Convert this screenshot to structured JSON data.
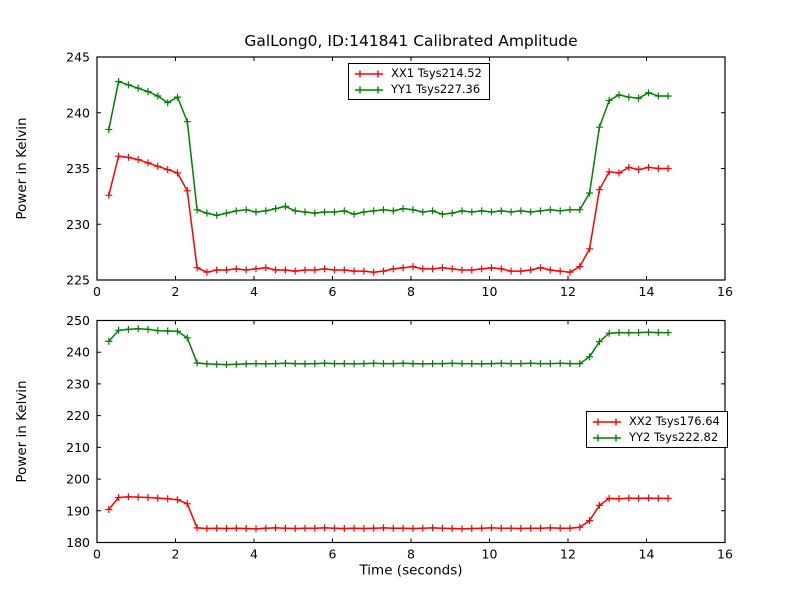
{
  "title": "GalLong0, ID:141841 Calibrated Amplitude",
  "colors": {
    "xx_series": "#ff0000",
    "yy_series": "#008000",
    "axis": "#000000",
    "background": "#ffffff"
  },
  "chart_data": [
    {
      "type": "line",
      "title": "",
      "xlabel": "",
      "ylabel": "Power in Kelvin",
      "xlim": [
        0,
        16
      ],
      "ylim": [
        225,
        245
      ],
      "xticks": [
        0,
        2,
        4,
        6,
        8,
        10,
        12,
        14,
        16
      ],
      "yticks": [
        225,
        230,
        235,
        240,
        245
      ],
      "grid": false,
      "legend_position": "top-center",
      "marker": "plus",
      "x": [
        0.3,
        0.55,
        0.8,
        1.05,
        1.3,
        1.55,
        1.8,
        2.05,
        2.3,
        2.55,
        2.8,
        3.05,
        3.3,
        3.55,
        3.8,
        4.05,
        4.3,
        4.55,
        4.8,
        5.05,
        5.3,
        5.55,
        5.8,
        6.05,
        6.3,
        6.55,
        6.8,
        7.05,
        7.3,
        7.55,
        7.8,
        8.05,
        8.3,
        8.55,
        8.8,
        9.05,
        9.3,
        9.55,
        9.8,
        10.05,
        10.3,
        10.55,
        10.8,
        11.05,
        11.3,
        11.55,
        11.8,
        12.05,
        12.3,
        12.55,
        12.8,
        13.05,
        13.3,
        13.55,
        13.8,
        14.05,
        14.3,
        14.55
      ],
      "series": [
        {
          "name": "XX1 Tsys214.52",
          "color": "#ff0000",
          "values": [
            232.6,
            236.1,
            236.0,
            235.8,
            235.5,
            235.2,
            234.9,
            234.6,
            233.0,
            226.1,
            225.7,
            225.9,
            225.9,
            226.0,
            225.9,
            226.0,
            226.1,
            225.9,
            225.9,
            225.8,
            225.9,
            225.9,
            226.0,
            225.9,
            225.9,
            225.8,
            225.8,
            225.7,
            225.8,
            226.0,
            226.1,
            226.2,
            226.0,
            226.0,
            226.1,
            226.0,
            225.9,
            225.9,
            226.0,
            226.1,
            226.0,
            225.8,
            225.8,
            225.9,
            226.1,
            225.9,
            225.8,
            225.7,
            226.2,
            227.8,
            233.1,
            234.7,
            234.6,
            235.1,
            234.9,
            235.1,
            235.0,
            235.0
          ]
        },
        {
          "name": "YY1 Tsys227.36",
          "color": "#008000",
          "values": [
            238.5,
            242.8,
            242.5,
            242.2,
            241.9,
            241.5,
            240.9,
            241.4,
            239.2,
            231.3,
            231.0,
            230.8,
            231.0,
            231.2,
            231.3,
            231.1,
            231.2,
            231.4,
            231.6,
            231.2,
            231.1,
            231.0,
            231.1,
            231.1,
            231.2,
            230.9,
            231.1,
            231.2,
            231.3,
            231.2,
            231.4,
            231.3,
            231.1,
            231.2,
            230.9,
            231.0,
            231.2,
            231.1,
            231.2,
            231.1,
            231.2,
            231.1,
            231.2,
            231.1,
            231.2,
            231.3,
            231.2,
            231.3,
            231.3,
            232.8,
            238.7,
            241.1,
            241.6,
            241.4,
            241.3,
            241.8,
            241.5,
            241.5
          ]
        }
      ]
    },
    {
      "type": "line",
      "title": "",
      "xlabel": "Time (seconds)",
      "ylabel": "Power in Kelvin",
      "xlim": [
        0,
        16
      ],
      "ylim": [
        180,
        250
      ],
      "xticks": [
        0,
        2,
        4,
        6,
        8,
        10,
        12,
        14,
        16
      ],
      "yticks": [
        180,
        190,
        200,
        210,
        220,
        230,
        240,
        250
      ],
      "grid": false,
      "legend_position": "right-middle",
      "marker": "plus",
      "x": [
        0.3,
        0.55,
        0.8,
        1.05,
        1.3,
        1.55,
        1.8,
        2.05,
        2.3,
        2.55,
        2.8,
        3.05,
        3.3,
        3.55,
        3.8,
        4.05,
        4.3,
        4.55,
        4.8,
        5.05,
        5.3,
        5.55,
        5.8,
        6.05,
        6.3,
        6.55,
        6.8,
        7.05,
        7.3,
        7.55,
        7.8,
        8.05,
        8.3,
        8.55,
        8.8,
        9.05,
        9.3,
        9.55,
        9.8,
        10.05,
        10.3,
        10.55,
        10.8,
        11.05,
        11.3,
        11.55,
        11.8,
        12.05,
        12.3,
        12.55,
        12.8,
        13.05,
        13.3,
        13.55,
        13.8,
        14.05,
        14.3,
        14.55
      ],
      "series": [
        {
          "name": "XX2 Tsys176.64",
          "color": "#ff0000",
          "values": [
            190.4,
            194.2,
            194.4,
            194.3,
            194.2,
            194.0,
            193.8,
            193.5,
            192.2,
            184.6,
            184.4,
            184.5,
            184.4,
            184.5,
            184.4,
            184.3,
            184.5,
            184.6,
            184.5,
            184.4,
            184.5,
            184.5,
            184.6,
            184.5,
            184.4,
            184.5,
            184.4,
            184.5,
            184.6,
            184.5,
            184.5,
            184.4,
            184.5,
            184.6,
            184.5,
            184.4,
            184.3,
            184.4,
            184.5,
            184.6,
            184.5,
            184.5,
            184.4,
            184.5,
            184.5,
            184.6,
            184.5,
            184.5,
            184.8,
            186.9,
            191.7,
            193.9,
            193.8,
            194.0,
            193.9,
            194.0,
            193.9,
            193.9
          ]
        },
        {
          "name": "YY2 Tsys222.82",
          "color": "#008000",
          "values": [
            243.4,
            246.9,
            247.2,
            247.4,
            247.2,
            246.8,
            246.7,
            246.6,
            244.5,
            236.6,
            236.3,
            236.2,
            236.1,
            236.2,
            236.3,
            236.4,
            236.3,
            236.4,
            236.5,
            236.4,
            236.3,
            236.4,
            236.5,
            236.4,
            236.4,
            236.3,
            236.4,
            236.5,
            236.4,
            236.4,
            236.5,
            236.4,
            236.3,
            236.4,
            236.4,
            236.5,
            236.4,
            236.4,
            236.3,
            236.4,
            236.5,
            236.4,
            236.4,
            236.5,
            236.4,
            236.4,
            236.5,
            236.4,
            236.4,
            238.6,
            243.3,
            246.0,
            246.2,
            246.1,
            246.2,
            246.3,
            246.2,
            246.2
          ]
        }
      ]
    }
  ]
}
